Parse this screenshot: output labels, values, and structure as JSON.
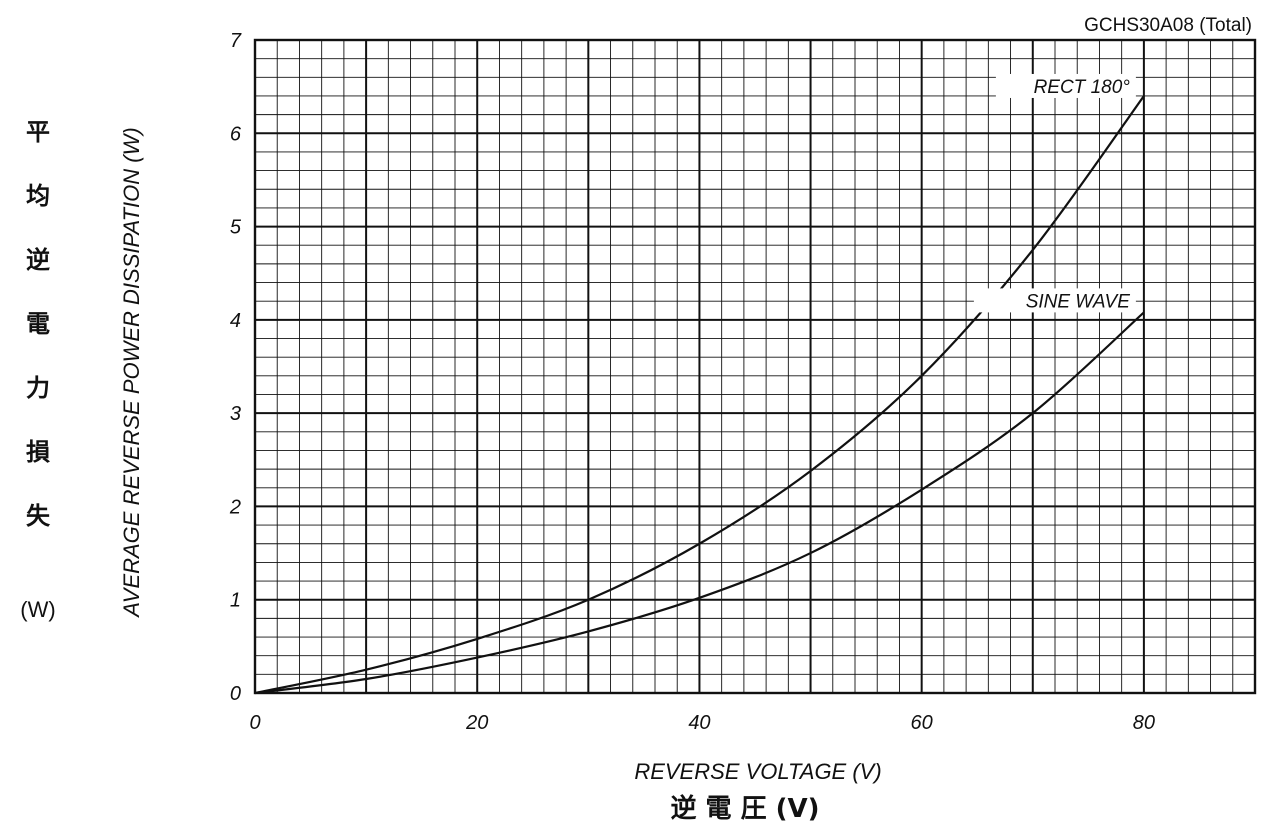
{
  "chart_data": {
    "type": "line",
    "title": "GCHS30A08 (Total)",
    "xlabel": "REVERSE VOLTAGE (V)",
    "xlabel_ja": "逆 電 圧 (V)",
    "ylabel": "AVERAGE REVERSE POWER DISSIPATION (W)",
    "ylabel_ja": [
      "平",
      "均",
      "逆",
      "電",
      "力",
      "損",
      "失"
    ],
    "ylabel_ja_unit": "(W)",
    "xlim": [
      0,
      90
    ],
    "ylim": [
      0,
      7
    ],
    "x_ticks": [
      0,
      20,
      40,
      60,
      80
    ],
    "y_ticks": [
      0,
      1,
      2,
      3,
      4,
      5,
      6,
      7
    ],
    "grid": true,
    "series": [
      {
        "name": "RECT 180°",
        "x": [
          0,
          10,
          20,
          30,
          40,
          50,
          60,
          70,
          80
        ],
        "y": [
          0,
          0.25,
          0.58,
          1.0,
          1.6,
          2.38,
          3.4,
          4.75,
          6.4
        ]
      },
      {
        "name": "SINE WAVE",
        "x": [
          0,
          10,
          20,
          30,
          40,
          50,
          60,
          70,
          80
        ],
        "y": [
          0,
          0.15,
          0.38,
          0.66,
          1.02,
          1.5,
          2.18,
          3.0,
          4.08
        ]
      }
    ]
  }
}
